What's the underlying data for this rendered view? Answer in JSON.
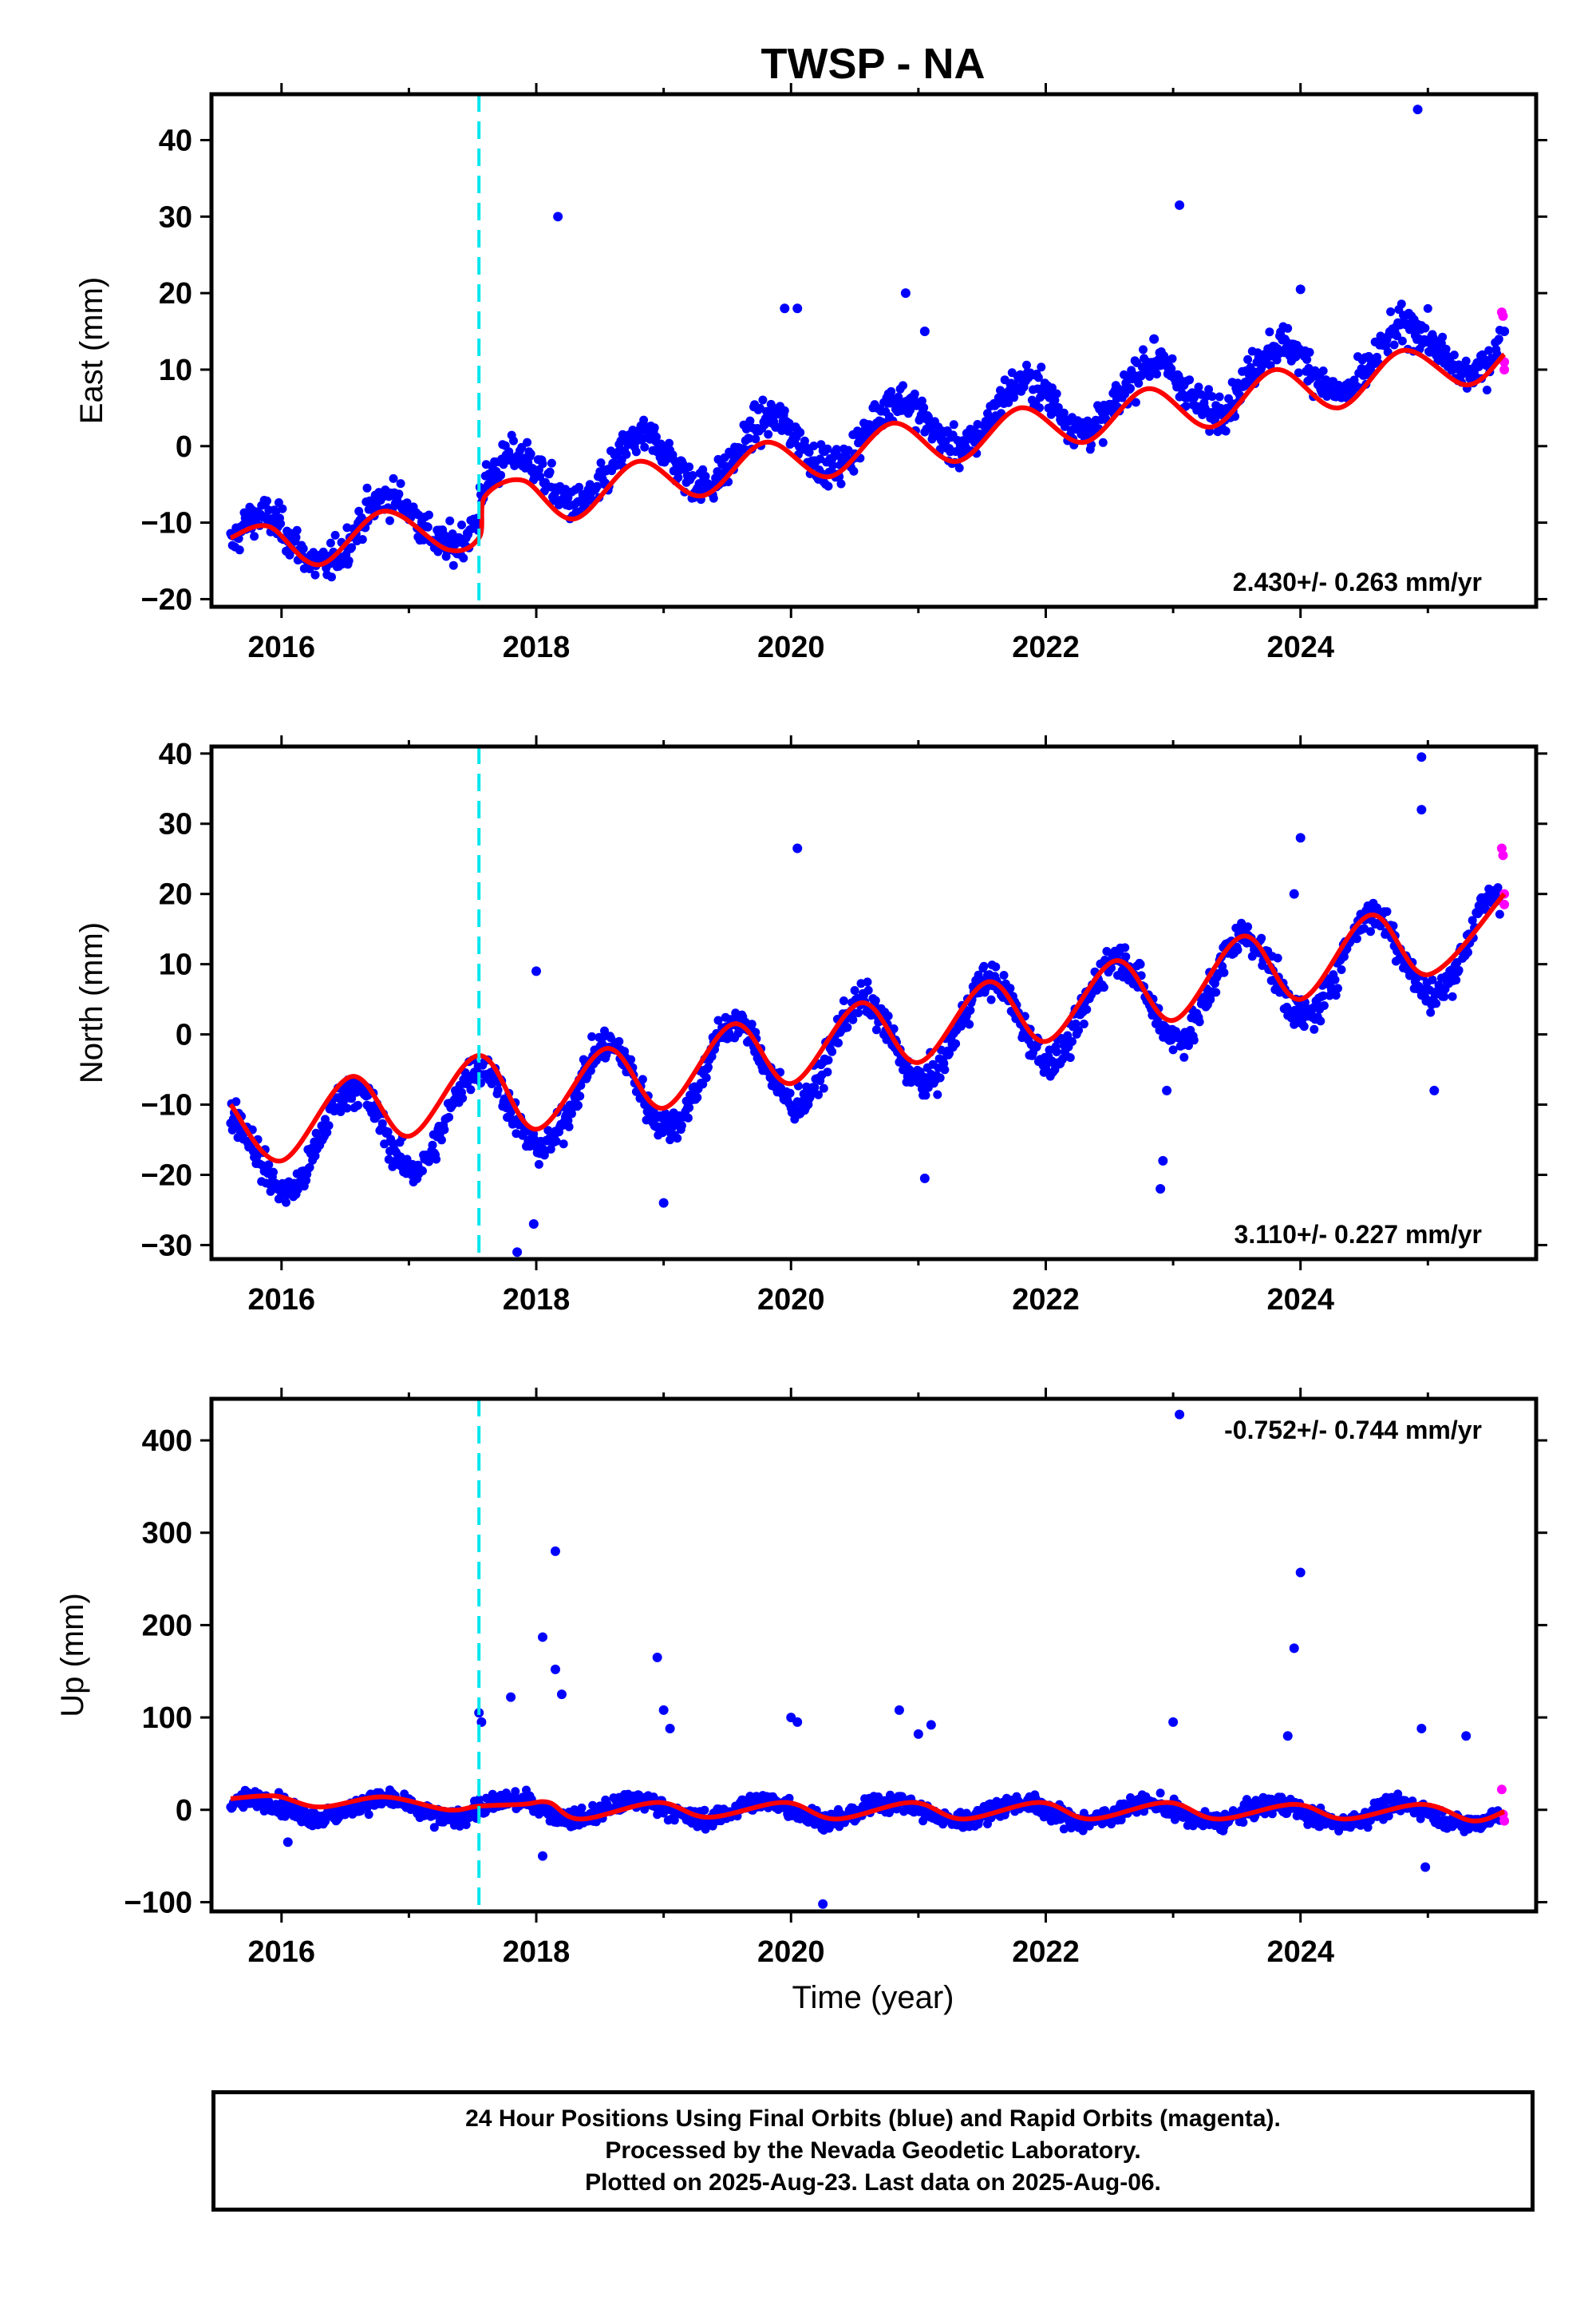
{
  "title": "TWSP - NA",
  "xlabel": "Time (year)",
  "colors": {
    "final_orbits": "#0000ff",
    "rapid_orbits": "#ff00ff",
    "model_fit": "#ff0000",
    "event_line": "#00e5ee",
    "frame": "#000000"
  },
  "x_ticks": [
    2016,
    2018,
    2020,
    2022,
    2024
  ],
  "footer": {
    "line1": "24 Hour Positions Using Final Orbits (blue) and Rapid Orbits (magenta).",
    "line2": "Processed by the Nevada Geodetic Laboratory.",
    "line3": "Plotted on 2025-Aug-23. Last data on 2025-Aug-06."
  },
  "chart_data": [
    {
      "type": "scatter",
      "ylabel": "East (mm)",
      "velocity_label": "2.430+/- 0.263 mm/yr",
      "xlim": [
        2015.45,
        2025.85
      ],
      "ylim": [
        -21,
        46
      ],
      "y_ticks": [
        -20,
        -10,
        0,
        10,
        20,
        30,
        40
      ],
      "event_line_x": 2017.55,
      "trend": {
        "offset_at_2016": -12.5,
        "rate_mm_per_yr": 2.43,
        "annual_amplitude": 3.8,
        "annual_peak_fraction": 0.83
      },
      "outliers": [
        [
          2018.17,
          30
        ],
        [
          2019.95,
          18
        ],
        [
          2020.05,
          18
        ],
        [
          2020.9,
          20
        ],
        [
          2023.05,
          31.5
        ],
        [
          2024.0,
          20.5
        ],
        [
          2024.92,
          44
        ],
        [
          2021.05,
          15
        ],
        [
          2022.85,
          14
        ],
        [
          2025.6,
          15
        ]
      ],
      "rapid_points": [
        [
          2025.58,
          17.5
        ],
        [
          2025.59,
          17
        ],
        [
          2025.6,
          11
        ],
        [
          2025.6,
          10
        ]
      ],
      "fit_points": [
        [
          2015.6,
          -12
        ],
        [
          2015.9,
          -10.5
        ],
        [
          2016.3,
          -15.5
        ],
        [
          2016.8,
          -8.5
        ],
        [
          2017.3,
          -13.5
        ],
        [
          2017.55,
          -12.0
        ],
        [
          2017.6,
          -6.5
        ],
        [
          2017.9,
          -4.5
        ],
        [
          2018.3,
          -9.5
        ],
        [
          2018.8,
          -2.0
        ],
        [
          2019.3,
          -6.5
        ],
        [
          2019.8,
          0.5
        ],
        [
          2020.3,
          -4.0
        ],
        [
          2020.8,
          3.0
        ],
        [
          2021.3,
          -2.0
        ],
        [
          2021.8,
          5.0
        ],
        [
          2022.3,
          0.5
        ],
        [
          2022.8,
          7.5
        ],
        [
          2023.3,
          2.5
        ],
        [
          2023.8,
          10.0
        ],
        [
          2024.3,
          5.0
        ],
        [
          2024.8,
          12.5
        ],
        [
          2025.3,
          8.0
        ],
        [
          2025.6,
          12.0
        ]
      ]
    },
    {
      "type": "scatter",
      "ylabel": "North (mm)",
      "velocity_label": "3.110+/- 0.227 mm/yr",
      "xlim": [
        2015.45,
        2025.85
      ],
      "ylim": [
        -32,
        41
      ],
      "y_ticks": [
        -30,
        -20,
        -10,
        0,
        10,
        20,
        30,
        40
      ],
      "event_line_x": 2017.55,
      "trend": {
        "offset_at_2016": -16,
        "rate_mm_per_yr": 3.11,
        "annual_amplitude": 6.5,
        "annual_peak_fraction": 0.55
      },
      "outliers": [
        [
          2018.0,
          9
        ],
        [
          2020.05,
          26.5
        ],
        [
          2017.98,
          -27
        ],
        [
          2017.85,
          -31
        ],
        [
          2019.0,
          -24
        ],
        [
          2021.05,
          -20.5
        ],
        [
          2022.9,
          -22
        ],
        [
          2022.92,
          -18
        ],
        [
          2022.95,
          -8
        ],
        [
          2024.0,
          28
        ],
        [
          2023.95,
          20
        ],
        [
          2024.95,
          39.5
        ],
        [
          2024.95,
          32
        ],
        [
          2025.05,
          -8
        ]
      ],
      "rapid_points": [
        [
          2025.58,
          26.5
        ],
        [
          2025.59,
          25.5
        ],
        [
          2025.6,
          20
        ],
        [
          2025.6,
          18.5
        ]
      ],
      "fit_points": [
        [
          2015.6,
          -10
        ],
        [
          2016.0,
          -18
        ],
        [
          2016.55,
          -6
        ],
        [
          2017.0,
          -14.5
        ],
        [
          2017.55,
          -3.0
        ],
        [
          2018.0,
          -13.5
        ],
        [
          2018.55,
          -2.0
        ],
        [
          2019.0,
          -10.5
        ],
        [
          2019.55,
          1.5
        ],
        [
          2020.0,
          -7.0
        ],
        [
          2020.55,
          4.5
        ],
        [
          2021.0,
          -4.0
        ],
        [
          2021.55,
          7.5
        ],
        [
          2022.0,
          -1.0
        ],
        [
          2022.55,
          10.5
        ],
        [
          2023.0,
          2.0
        ],
        [
          2023.55,
          14.0
        ],
        [
          2024.0,
          5.0
        ],
        [
          2024.55,
          17.0
        ],
        [
          2025.0,
          8.5
        ],
        [
          2025.6,
          20.0
        ]
      ]
    },
    {
      "type": "scatter",
      "ylabel": "Up (mm)",
      "velocity_label": "-0.752+/- 0.744 mm/yr",
      "xlim": [
        2015.45,
        2025.85
      ],
      "ylim": [
        -110,
        445
      ],
      "y_ticks": [
        -100,
        0,
        100,
        200,
        300,
        400
      ],
      "event_line_x": 2017.55,
      "trend": {
        "offset_at_2016": 2,
        "rate_mm_per_yr": -0.75,
        "annual_amplitude": 10,
        "annual_peak_fraction": 0.8
      },
      "outliers": [
        [
          2017.55,
          105
        ],
        [
          2017.57,
          95
        ],
        [
          2017.8,
          122
        ],
        [
          2018.05,
          187
        ],
        [
          2018.15,
          280
        ],
        [
          2018.15,
          152
        ],
        [
          2018.2,
          125
        ],
        [
          2018.05,
          -50
        ],
        [
          2018.95,
          165
        ],
        [
          2019.0,
          108
        ],
        [
          2019.05,
          88
        ],
        [
          2020.0,
          100
        ],
        [
          2020.05,
          95
        ],
        [
          2020.25,
          -102
        ],
        [
          2020.85,
          108
        ],
        [
          2021.1,
          92
        ],
        [
          2021.0,
          82
        ],
        [
          2023.05,
          428
        ],
        [
          2023.0,
          95
        ],
        [
          2024.0,
          257
        ],
        [
          2023.95,
          175
        ],
        [
          2023.9,
          80
        ],
        [
          2024.95,
          88
        ],
        [
          2024.98,
          -62
        ],
        [
          2025.3,
          80
        ],
        [
          2016.05,
          -35
        ]
      ],
      "rapid_points": [
        [
          2025.58,
          22
        ],
        [
          2025.59,
          -5
        ],
        [
          2025.6,
          -12
        ]
      ],
      "fit_points": [
        [
          2015.6,
          12
        ],
        [
          2015.95,
          15
        ],
        [
          2016.3,
          3
        ],
        [
          2016.8,
          14
        ],
        [
          2017.3,
          0
        ],
        [
          2017.55,
          4
        ],
        [
          2017.9,
          6
        ],
        [
          2018.1,
          8
        ],
        [
          2018.35,
          -10
        ],
        [
          2018.95,
          8
        ],
        [
          2019.35,
          -8
        ],
        [
          2019.95,
          8
        ],
        [
          2020.35,
          -10
        ],
        [
          2020.95,
          8
        ],
        [
          2021.35,
          -10
        ],
        [
          2021.95,
          8
        ],
        [
          2022.35,
          -10
        ],
        [
          2022.95,
          8
        ],
        [
          2023.35,
          -10
        ],
        [
          2023.95,
          6
        ],
        [
          2024.35,
          -10
        ],
        [
          2024.95,
          6
        ],
        [
          2025.35,
          -12
        ],
        [
          2025.6,
          -2
        ]
      ]
    }
  ]
}
